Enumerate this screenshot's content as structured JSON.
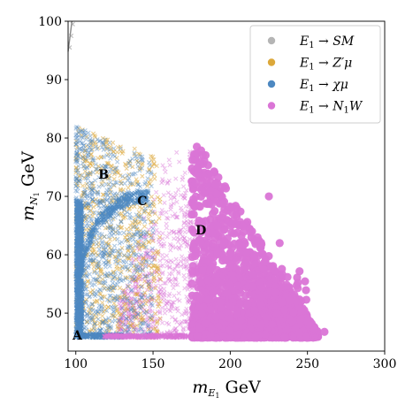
{
  "chart_data": {
    "type": "scatter",
    "xlabel": "m_{E_1} GeV",
    "ylabel": "m_{N_1} GeV",
    "xlim": [
      95,
      300
    ],
    "ylim": [
      43.5,
      100
    ],
    "xticks": [
      "100",
      "150",
      "200",
      "250",
      "300"
    ],
    "yticks": [
      "50",
      "60",
      "70",
      "80",
      "90",
      "100"
    ],
    "xtick_values": [
      100,
      150,
      200,
      250,
      300
    ],
    "ytick_values": [
      50,
      60,
      70,
      80,
      90,
      100
    ],
    "grid": false,
    "legend_position": "top-right",
    "series": [
      {
        "name": "E₁ → SM",
        "color": "#b5b5b5",
        "marker": "x",
        "points": [
          [
            96,
            95.5
          ],
          [
            97,
            97.5
          ],
          [
            98,
            99.5
          ]
        ]
      },
      {
        "name": "E₁ → Z′μ",
        "color": "#dca83a",
        "marker": "x",
        "region": {
          "x_range": [
            100,
            155
          ],
          "y_range": [
            45.5,
            82
          ]
        }
      },
      {
        "name": "E₁ → χμ",
        "color": "#4d88c1",
        "marker": "x",
        "region": {
          "x_range": [
            100,
            150
          ],
          "y_range": [
            45.5,
            83
          ]
        }
      },
      {
        "name": "E₁ → N₁W",
        "color": "#da75d6",
        "marker": "o",
        "region": {
          "x_range": [
            130,
            262
          ],
          "y_range": [
            45.5,
            79
          ]
        }
      }
    ],
    "annotations": [
      {
        "text": "A",
        "x": 101,
        "y": 45.5
      },
      {
        "text": "B",
        "x": 118,
        "y": 73
      },
      {
        "text": "C",
        "x": 143,
        "y": 68.5
      },
      {
        "text": "D",
        "x": 181,
        "y": 63.5
      }
    ],
    "legend": [
      {
        "label_prefix": "E",
        "sub": "1",
        "label_suffix": " → SM",
        "color": "#b5b5b5"
      },
      {
        "label_prefix": "E",
        "sub": "1",
        "label_suffix": " → Z′μ",
        "color": "#dca83a"
      },
      {
        "label_prefix": "E",
        "sub": "1",
        "label_suffix": " → χμ",
        "color": "#4d88c1"
      },
      {
        "label_prefix": "E",
        "sub": "1",
        "label_suffix": " → N",
        "sub2": "1",
        "label_tail": "W",
        "color": "#da75d6"
      }
    ]
  }
}
